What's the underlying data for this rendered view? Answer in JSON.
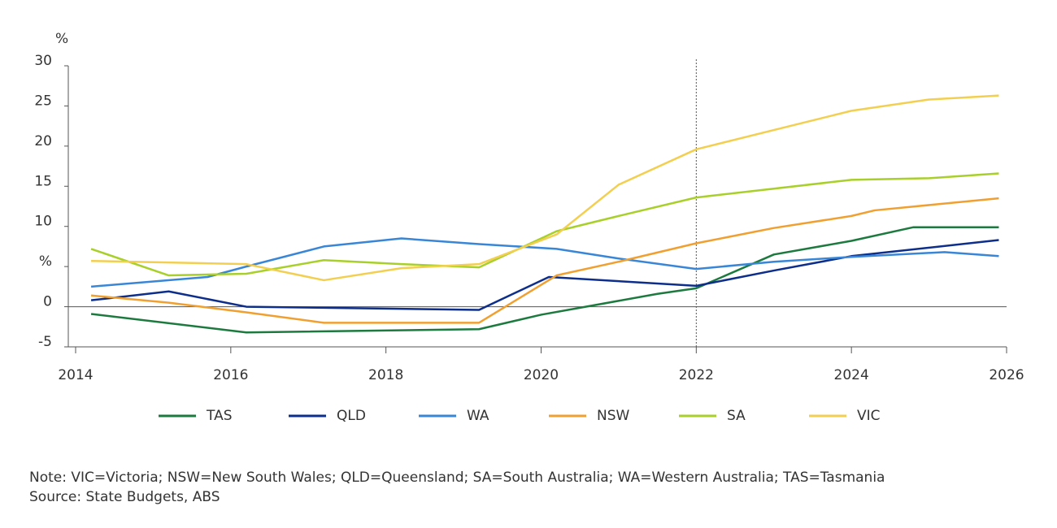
{
  "chart_data": {
    "type": "line",
    "y_unit": "%",
    "xlim": [
      2014,
      2026
    ],
    "xticks": [
      2014,
      2016,
      2018,
      2020,
      2022,
      2024,
      2026
    ],
    "ylim": [
      -5,
      30
    ],
    "yticks": [
      -5,
      0,
      {
        "value": 5,
        "label": "%"
      },
      10,
      15,
      20,
      25,
      30
    ],
    "reference_line_x": 2022,
    "series": [
      {
        "name": "TAS",
        "color": "#1c7a3e",
        "x": [
          2014.2,
          2016.2,
          2019.2,
          2020,
          2021.5,
          2022,
          2023,
          2024,
          2024.8,
          2025.9
        ],
        "values": [
          -0.9,
          -3.2,
          -2.8,
          -1.0,
          1.6,
          2.3,
          6.5,
          8.2,
          9.9,
          9.9
        ]
      },
      {
        "name": "QLD",
        "color": "#0d2e8a",
        "x": [
          2014.2,
          2015.2,
          2016.2,
          2019.2,
          2020.1,
          2022,
          2023,
          2024,
          2025.9
        ],
        "values": [
          0.8,
          1.9,
          0.0,
          -0.4,
          3.7,
          2.6,
          4.5,
          6.3,
          8.3
        ]
      },
      {
        "name": "WA",
        "color": "#3a86d6",
        "x": [
          2014.2,
          2015.7,
          2016.2,
          2017.2,
          2018.2,
          2019.2,
          2020.2,
          2021,
          2022,
          2023,
          2024,
          2025.2,
          2025.9
        ],
        "values": [
          2.5,
          3.7,
          5.0,
          7.5,
          8.5,
          7.8,
          7.2,
          6.0,
          4.7,
          5.6,
          6.2,
          6.8,
          6.3
        ]
      },
      {
        "name": "NSW",
        "color": "#f0a030",
        "x": [
          2014.2,
          2015.2,
          2016.2,
          2017.2,
          2019.2,
          2020.2,
          2021,
          2022,
          2023,
          2024,
          2024.3,
          2025.9
        ],
        "values": [
          1.4,
          0.5,
          -0.7,
          -2.0,
          -2.0,
          3.9,
          5.6,
          7.9,
          9.8,
          11.3,
          12.0,
          13.5
        ]
      },
      {
        "name": "SA",
        "color": "#a8cf2a",
        "x": [
          2014.2,
          2015.2,
          2016.2,
          2017.2,
          2018.2,
          2019.2,
          2020.2,
          2021,
          2022,
          2023,
          2024,
          2025,
          2025.9
        ],
        "values": [
          7.2,
          3.9,
          4.1,
          5.8,
          5.3,
          4.9,
          9.4,
          11.3,
          13.6,
          14.7,
          15.8,
          16.0,
          16.6
        ]
      },
      {
        "name": "VIC",
        "color": "#f2cf50",
        "x": [
          2014.2,
          2016.2,
          2017.2,
          2018.2,
          2019.2,
          2020.2,
          2021,
          2022,
          2023,
          2024,
          2025,
          2025.9
        ],
        "values": [
          5.7,
          5.3,
          3.3,
          4.8,
          5.3,
          9.0,
          15.2,
          19.6,
          22.0,
          24.4,
          25.8,
          26.3
        ]
      }
    ],
    "note": "Note: VIC=Victoria; NSW=New South Wales; QLD=Queensland; SA=South Australia; WA=Western Australia; TAS=Tasmania",
    "source": "Source: State Budgets, ABS"
  }
}
